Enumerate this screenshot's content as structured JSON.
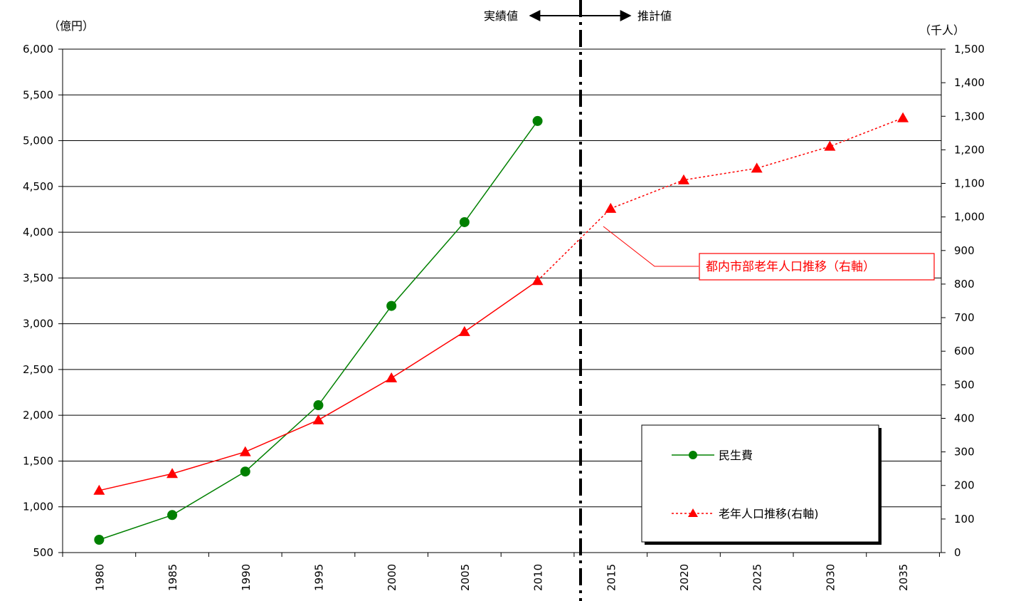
{
  "chart_data": {
    "type": "line",
    "categories": [
      "1980",
      "1985",
      "1990",
      "1995",
      "2000",
      "2005",
      "2010",
      "2015",
      "2020",
      "2025",
      "2030",
      "2035"
    ],
    "y_left": {
      "unit_label": "（億円）",
      "ylim": [
        500,
        6000
      ],
      "ticks": [
        "500",
        "1,000",
        "1,500",
        "2,000",
        "2,500",
        "3,000",
        "3,500",
        "4,000",
        "4,500",
        "5,000",
        "5,500",
        "6,000"
      ]
    },
    "y_right": {
      "unit_label": "（千人）",
      "ylim": [
        0,
        1500
      ],
      "ticks": [
        "0",
        "100",
        "200",
        "300",
        "400",
        "500",
        "600",
        "700",
        "800",
        "900",
        "1,000",
        "1,100",
        "1,200",
        "1,300",
        "1,400",
        "1,500"
      ]
    },
    "series": [
      {
        "name": "民生費",
        "axis": "left",
        "color": "#008000",
        "marker": "circle",
        "style": "solid",
        "values": [
          640,
          910,
          1385,
          2110,
          3195,
          4110,
          5215,
          null,
          null,
          null,
          null,
          null
        ]
      },
      {
        "name": "老年人口推移(右軸)",
        "axis": "right",
        "color": "#ff0000",
        "marker": "triangle",
        "style": "solid until 2010, dotted after",
        "values": [
          185,
          235,
          300,
          395,
          520,
          658,
          810,
          1025,
          1110,
          1145,
          1210,
          1295
        ]
      }
    ],
    "divider": {
      "between": [
        "2010",
        "2015"
      ],
      "left_label": "実績値",
      "right_label": "推計値"
    },
    "annotation": "都内市部老年人口推移（右軸）",
    "legend_position": "bottom-right",
    "grid": "horizontal"
  }
}
